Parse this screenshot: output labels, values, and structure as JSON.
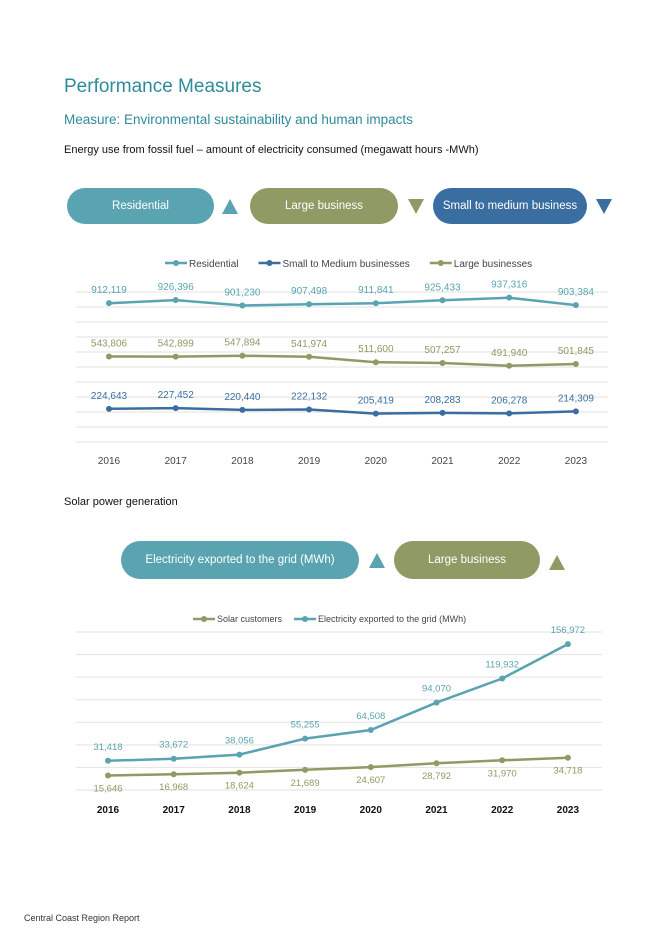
{
  "header": {
    "title": "Performance Measures",
    "measure": "Measure:  Environmental sustainability and human impacts"
  },
  "energy": {
    "caption": "Energy use from fossil fuel – amount of electricity consumed (megawatt hours -MWh)",
    "pills": [
      {
        "label": "Residential",
        "color": "#5aa3b1",
        "arrow": "up-triangle-icon"
      },
      {
        "label": "Large business",
        "color": "#8f9a64",
        "arrow": "down-triangle-icon"
      },
      {
        "label": "Small to medium business",
        "color": "#3a6ea0",
        "arrow": "down-triangle-icon"
      }
    ]
  },
  "solar": {
    "caption": "Solar power generation",
    "pills": [
      {
        "label": "Electricity exported to the grid (MWh)",
        "color": "#5aa3b1",
        "arrow": "up-triangle-icon"
      },
      {
        "label": "Large business",
        "color": "#8f9a64",
        "arrow": "up-triangle-icon"
      }
    ]
  },
  "footer": {
    "text": "Central Coast Region Report"
  },
  "chart_data": [
    {
      "type": "line",
      "x": [
        "2016",
        "2017",
        "2018",
        "2019",
        "2020",
        "2021",
        "2022",
        "2023"
      ],
      "series": [
        {
          "name": "Residential",
          "color": "#5aa3b1",
          "labels": [
            "912,119",
            "926,396",
            "901,230",
            "907,498",
            "911,841",
            "925,433",
            "937,316",
            "903,384"
          ],
          "values": [
            912119,
            926396,
            901230,
            907498,
            911841,
            925433,
            937316,
            903384
          ]
        },
        {
          "name": "Small to Medium businesses",
          "color": "#3a6ea0",
          "labels": [
            "224,643",
            "227,452",
            "220,440",
            "222,132",
            "205,419",
            "208,283",
            "206,278",
            "214,309"
          ],
          "values": [
            224643,
            227452,
            220440,
            222132,
            205419,
            208283,
            206278,
            214309
          ]
        },
        {
          "name": "Large businesses",
          "color": "#8f9a64",
          "labels": [
            "543,806",
            "542,899",
            "547,894",
            "541,974",
            "511,600",
            "507,257",
            "491,940",
            "501,845"
          ],
          "values": [
            543806,
            542899,
            547894,
            541974,
            511600,
            507257,
            491940,
            501845
          ]
        }
      ],
      "legend": "top",
      "grid": true
    },
    {
      "type": "line",
      "x": [
        "2016",
        "2017",
        "2018",
        "2019",
        "2020",
        "2021",
        "2022",
        "2023"
      ],
      "series": [
        {
          "name": "Solar customers",
          "color": "#8f9a64",
          "labels": [
            "15,646",
            "16,968",
            "18,624",
            "21,689",
            "24,607",
            "28,792",
            "31,970",
            "34,718"
          ],
          "values": [
            15646,
            16968,
            18624,
            21689,
            24607,
            28792,
            31970,
            34718
          ]
        },
        {
          "name": "Electricity exported to the grid (MWh)",
          "color": "#5aa3b1",
          "labels": [
            "31,418",
            "33,672",
            "38,056",
            "55,255",
            "64,508",
            "94,070",
            "119,932",
            "156,972"
          ],
          "values": [
            31418,
            33672,
            38056,
            55255,
            64508,
            94070,
            119932,
            156972
          ]
        }
      ],
      "ylim": [
        0,
        170000
      ],
      "legend": "top",
      "grid": true
    }
  ]
}
